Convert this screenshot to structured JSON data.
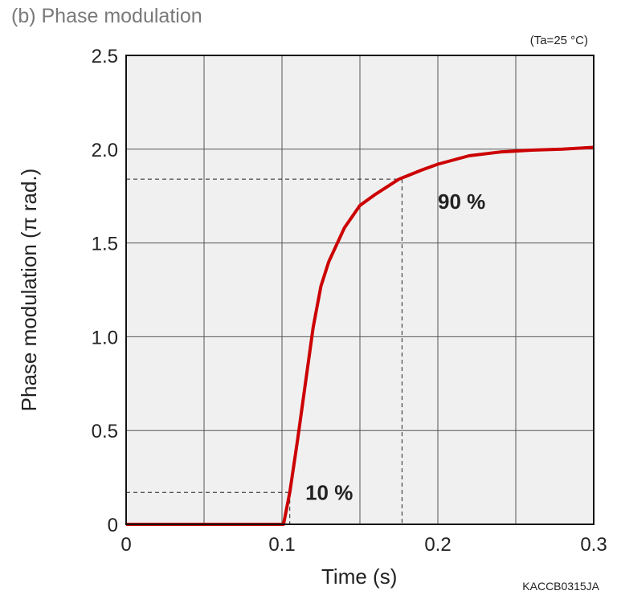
{
  "header": {
    "title": "(b) Phase modulation",
    "condition": "(Ta=25 °C)",
    "code": "KACCB0315JA"
  },
  "chart_data": {
    "type": "line",
    "title": "(b) Phase modulation",
    "xlabel": "Time (s)",
    "ylabel": "Phase modulation (π rad.)",
    "xlim": [
      0,
      0.3
    ],
    "ylim": [
      0,
      2.5
    ],
    "xticks": [
      0,
      0.1,
      0.2,
      0.3
    ],
    "xtick_labels": [
      "0",
      "0.1",
      "0.2",
      "0.3"
    ],
    "yticks": [
      0,
      0.5,
      1.0,
      1.5,
      2.0,
      2.5
    ],
    "ytick_labels": [
      "0",
      "0.5",
      "1.0",
      "1.5",
      "2.0",
      "2.5"
    ],
    "grid": true,
    "grid_step_x": 0.05,
    "grid_step_y": 0.5,
    "series": [
      {
        "color": "#cc0000",
        "x": [
          0,
          0.05,
          0.1,
          0.101,
          0.105,
          0.11,
          0.115,
          0.12,
          0.125,
          0.13,
          0.14,
          0.15,
          0.16,
          0.175,
          0.19,
          0.2,
          0.22,
          0.24,
          0.26,
          0.28,
          0.3
        ],
        "y": [
          0,
          0,
          0,
          0.0,
          0.17,
          0.45,
          0.75,
          1.05,
          1.27,
          1.4,
          1.58,
          1.7,
          1.76,
          1.84,
          1.89,
          1.92,
          1.965,
          1.985,
          1.995,
          2.0,
          2.01
        ]
      }
    ],
    "reference_lines": [
      {
        "label": "10 %",
        "x": 0.105,
        "y": 0.17
      },
      {
        "label": "90 %",
        "x": 0.177,
        "y": 1.84
      }
    ],
    "annotations": [
      {
        "text": "10 %",
        "x": 0.115,
        "y": 0.17
      },
      {
        "text": "90 %",
        "x": 0.2,
        "y": 1.72
      }
    ]
  }
}
